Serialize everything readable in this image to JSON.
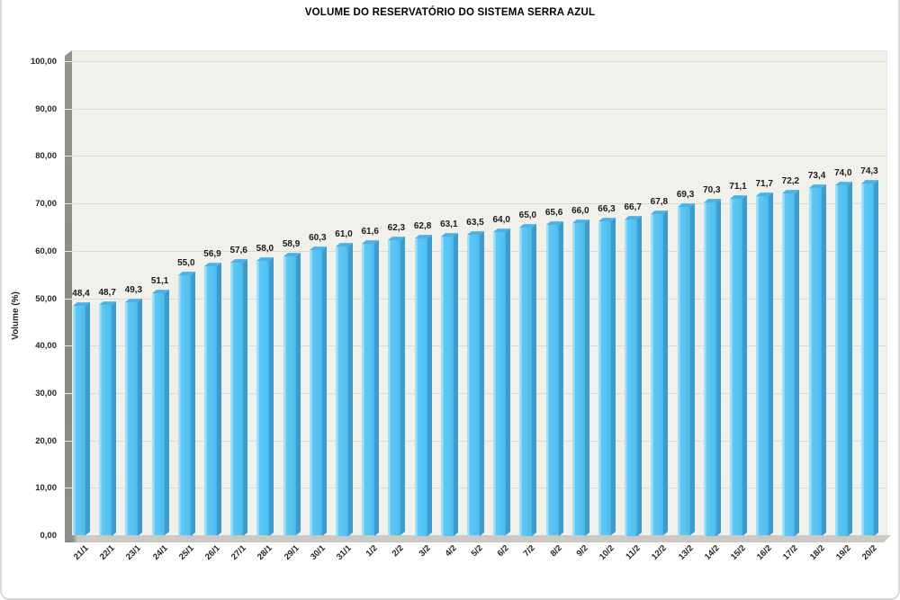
{
  "card": {
    "border_color": "#d5d5d5",
    "background": "#ffffff"
  },
  "chart_data": {
    "type": "bar",
    "title": "VOLUME DO RESERVATÓRIO DO SISTEMA SERRA AZUL",
    "xlabel": "",
    "ylabel": "Volume (%)",
    "ylim": [
      0,
      100
    ],
    "ytick_step": 10,
    "ytick_labels": [
      "0,00",
      "10,00",
      "20,00",
      "30,00",
      "40,00",
      "50,00",
      "60,00",
      "70,00",
      "80,00",
      "90,00",
      "100,00"
    ],
    "grid": true,
    "legend": "none",
    "decimal_separator": ",",
    "categories": [
      "21/1",
      "22/1",
      "23/1",
      "24/1",
      "25/1",
      "26/1",
      "27/1",
      "28/1",
      "29/1",
      "30/1",
      "31/1",
      "1/2",
      "2/2",
      "3/2",
      "4/2",
      "5/2",
      "6/2",
      "7/2",
      "8/2",
      "9/2",
      "10/2",
      "11/2",
      "12/2",
      "13/2",
      "14/2",
      "15/2",
      "16/2",
      "17/2",
      "18/2",
      "19/2",
      "20/2"
    ],
    "values": [
      48.4,
      48.7,
      49.3,
      51.1,
      55.0,
      56.9,
      57.6,
      58.0,
      58.9,
      60.3,
      61.0,
      61.6,
      62.3,
      62.8,
      63.1,
      63.5,
      64.0,
      65.0,
      65.6,
      66.0,
      66.3,
      66.7,
      67.8,
      69.3,
      70.3,
      71.1,
      71.7,
      72.2,
      73.4,
      74.0,
      74.3
    ],
    "value_labels": [
      "48,4",
      "48,7",
      "49,3",
      "51,1",
      "55,0",
      "56,9",
      "57,6",
      "58,0",
      "58,9",
      "60,3",
      "61,0",
      "61,6",
      "62,3",
      "62,8",
      "63,1",
      "63,5",
      "64,0",
      "65,0",
      "65,6",
      "66,0",
      "66,3",
      "66,7",
      "67,8",
      "69,3",
      "70,3",
      "71,1",
      "71,7",
      "72,2",
      "73,4",
      "74,0",
      "74,3"
    ],
    "colors": {
      "bar_front": "#53c1f1",
      "bar_highlight": "#9ce2fb",
      "bar_side": "#3e9bcd",
      "bar_top": "#48b3e4",
      "plot_background": "#f2f0ea",
      "gridline": "#dbd9d2",
      "wall": "#8a8882",
      "floor": "#cbc9c3",
      "label_text": "#1a1a1a"
    }
  }
}
